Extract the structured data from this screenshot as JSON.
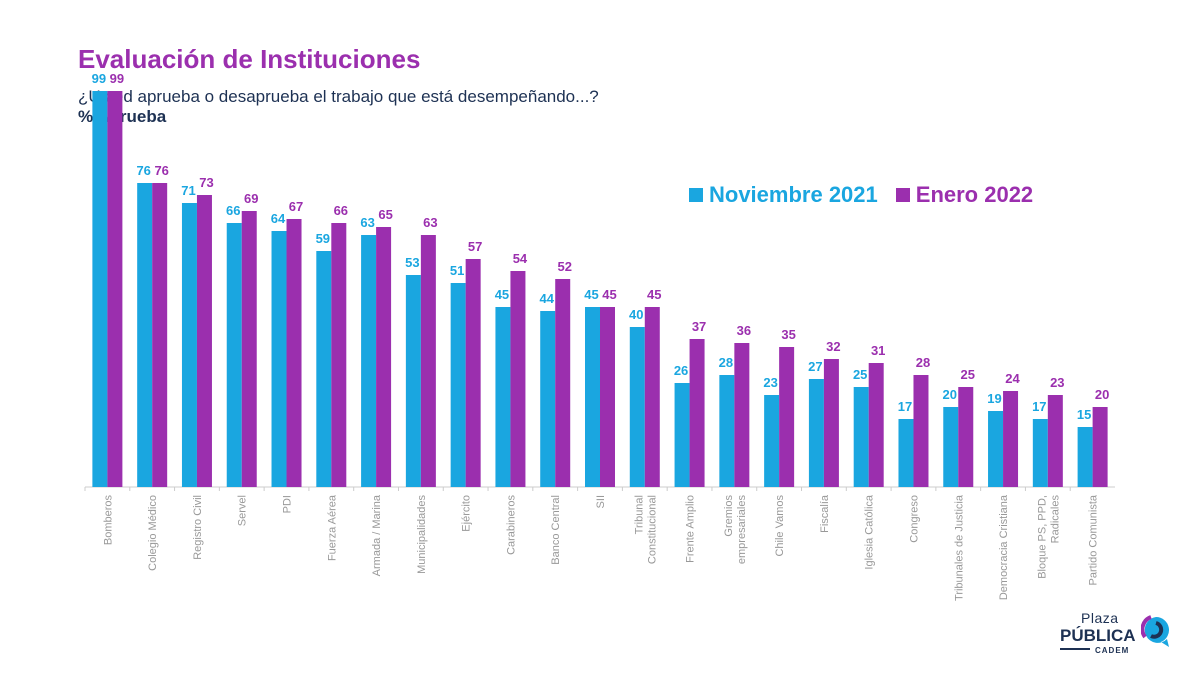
{
  "header": {
    "title": "Evaluación de Instituciones",
    "subtitle": "¿Usted aprueba o desaprueba el trabajo que está desempeñando...?",
    "metric": "% Aprueba"
  },
  "legend": {
    "series_a": "Noviembre 2021",
    "series_b": "Enero 2022"
  },
  "colors": {
    "nov": "#1aa6e0",
    "ene": "#9b2fae",
    "title": "#9b2fae",
    "text": "#1d3153",
    "axis_label": "#999999"
  },
  "logo": {
    "line1": "Plaza",
    "line2": "PÚBLICA",
    "line3": "CADEM"
  },
  "chart_data": {
    "type": "bar",
    "title": "Evaluación de Instituciones",
    "ylabel": "% Aprueba",
    "ylim": [
      0,
      100
    ],
    "grid": false,
    "legend_position": "top-right",
    "categories": [
      "Bomberos",
      "Colegio Médico",
      "Registro Civil",
      "Servel",
      "PDI",
      "Fuerza Aérea",
      "Armada / Marina",
      "Municipalidades",
      "Ejército",
      "Carabineros",
      "Banco Central",
      "SII",
      "Tribunal Constitucional",
      "Frente Amplio",
      "Gremios empresariales",
      "Chile Vamos",
      "Fiscalía",
      "Iglesia Católica",
      "Congreso",
      "Tribunales de Justicia",
      "Democracia Cristiana",
      "Bloque PS, PPD, Radicales",
      "Partido Comunista"
    ],
    "category_lines": [
      [
        "Bomberos"
      ],
      [
        "Colegio Médico"
      ],
      [
        "Registro Civil"
      ],
      [
        "Servel"
      ],
      [
        "PDI"
      ],
      [
        "Fuerza Aérea"
      ],
      [
        "Armada / Marina"
      ],
      [
        "Municipalidades"
      ],
      [
        "Ejército"
      ],
      [
        "Carabineros"
      ],
      [
        "Banco Central"
      ],
      [
        "SII"
      ],
      [
        "Tribunal",
        "Constitucional"
      ],
      [
        "Frente Amplio"
      ],
      [
        "Gremios",
        "empresariales"
      ],
      [
        "Chile Vamos"
      ],
      [
        "Fiscalía"
      ],
      [
        "Iglesia Católica"
      ],
      [
        "Congreso"
      ],
      [
        "Tribunales de Justicia"
      ],
      [
        "Democracia Cristiana"
      ],
      [
        "Bloque PS, PPD,",
        "Radicales"
      ],
      [
        "Partido Comunista"
      ]
    ],
    "series": [
      {
        "name": "Noviembre 2021",
        "values": [
          99,
          76,
          71,
          66,
          64,
          59,
          63,
          53,
          51,
          45,
          44,
          45,
          40,
          26,
          28,
          23,
          27,
          25,
          17,
          20,
          19,
          17,
          15
        ]
      },
      {
        "name": "Enero 2022",
        "values": [
          99,
          76,
          73,
          69,
          67,
          66,
          65,
          63,
          57,
          54,
          52,
          45,
          45,
          37,
          36,
          35,
          32,
          31,
          28,
          25,
          24,
          23,
          20
        ]
      }
    ]
  }
}
